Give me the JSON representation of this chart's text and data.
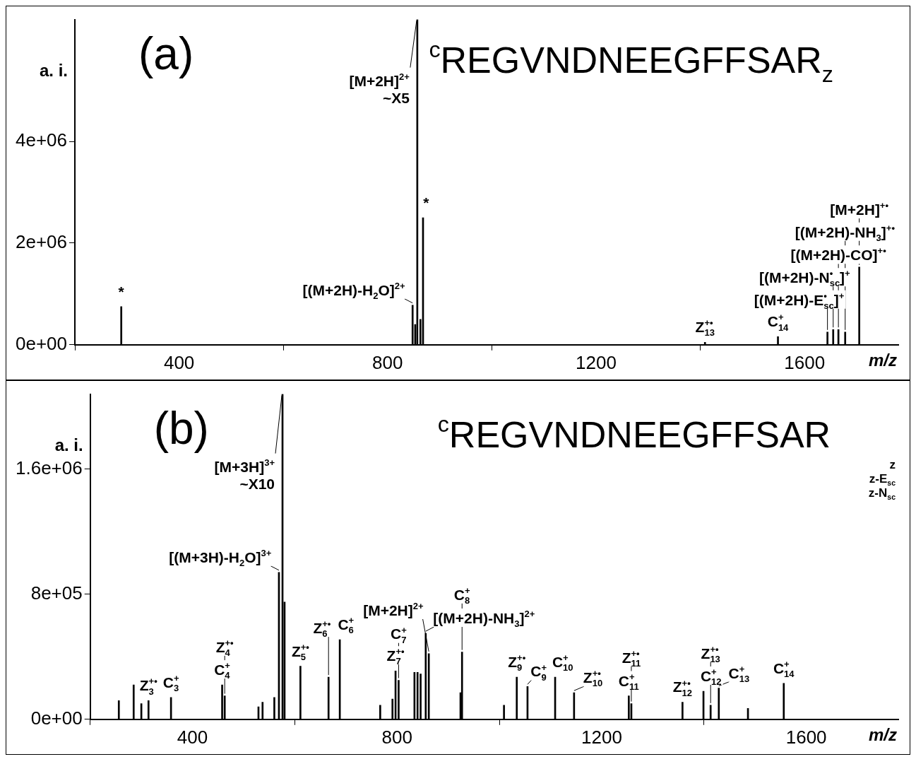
{
  "chart_data": [
    {
      "type": "bar",
      "ylabel": "a. i.",
      "xlabel": "m/z",
      "color": "#000000",
      "annotations": [
        "(a)",
        "$^{c}$REGVNDNEEGFFSAR$_{z}$",
        {
          "text": "*",
          "x": 289,
          "y": 750000
        },
        {
          "text": "[(M+2H)-H$_{2}$O]$^{2+}$",
          "x": 848,
          "y": 780000
        },
        {
          "text": "[M+2H]$^{2+}$\n~X5",
          "x": 857,
          "y": 6400000
        },
        {
          "text": "*",
          "x": 868,
          "y": 2500000
        },
        {
          "text": "Z$_{13}$$^{+•}$",
          "x": 1409,
          "y": 50000
        },
        {
          "text": "C$_{14}$$^{+}$",
          "x": 1549,
          "y": 160000
        },
        {
          "text": "[(M+2H)-E$_{sc}$$^{•}$]$^{+}$",
          "x": 1644,
          "y": 250000
        },
        {
          "text": "[(M+2H)-N$_{sc}$$^{•}$]$^{+}$",
          "x": 1655,
          "y": 300000
        },
        {
          "text": "[(M+2H)-CO]$^{+•}$",
          "x": 1665,
          "y": 300000
        },
        {
          "text": "[(M+2H)-NH$_{3}$]$^{+•}$",
          "x": 1678,
          "y": 250000
        },
        {
          "text": "[M+2H]$^{+•}$",
          "x": 1705,
          "y": 1530000
        }
      ],
      "x": [
        289,
        848,
        853,
        857,
        863,
        868,
        1409,
        1549,
        1644,
        1655,
        1665,
        1678,
        1705
      ],
      "values": [
        750000,
        780000,
        400000,
        6400000,
        500000,
        2500000,
        50000,
        160000,
        250000,
        300000,
        300000,
        250000,
        1530000
      ],
      "xlim": [
        200,
        1780
      ],
      "ylim": [
        0,
        6400000
      ],
      "xticks": [
        400,
        800,
        1200,
        1600
      ],
      "yticks": [
        {
          "value": 0,
          "label": "0e+00"
        },
        {
          "value": 2000000,
          "label": "2e+06"
        },
        {
          "value": 4000000,
          "label": "4e+06"
        }
      ]
    },
    {
      "type": "bar",
      "ylabel": "a. i.",
      "xlabel": "m/z",
      "color": "#000000",
      "annotations": [
        "(b)",
        "$^{c}$REGVNDNEEGFFSAR",
        "z",
        "z-E$_{sc}$",
        "z-N$_{sc}$",
        {
          "text": "[M+3H]$^{3+}$\n~X10",
          "x": 576,
          "y": 2080000
        },
        {
          "text": "[(M+3H)-H$_{2}$O]$^{3+}$",
          "x": 569,
          "y": 940000
        },
        {
          "text": "Z$_{3}$$^{+•}$",
          "x": 314,
          "y": 120000
        },
        {
          "text": "C$_{3}$$^{+}$",
          "x": 358,
          "y": 140000
        },
        {
          "text": "C$_{4}$$^{+}$",
          "x": 458,
          "y": 220000
        },
        {
          "text": "Z$_{4}$$^{+•}$",
          "x": 463,
          "y": 150000
        },
        {
          "text": "Z$_{5}$$^{+•}$",
          "x": 611,
          "y": 340000
        },
        {
          "text": "Z$_{6}$$^{+•}$",
          "x": 666,
          "y": 270000
        },
        {
          "text": "C$_{6}$$^{+}$",
          "x": 688,
          "y": 510000
        },
        {
          "text": "Z$_{7}$$^{+•}$",
          "x": 797,
          "y": 310000
        },
        {
          "text": "C$_{7}$$^{+}$",
          "x": 803,
          "y": 250000
        },
        {
          "text": "[(M+2H)-NH$_{3}$]$^{2+}$",
          "x": 856,
          "y": 550000
        },
        {
          "text": "[M+2H]$^{2+}$",
          "x": 862,
          "y": 420000
        },
        {
          "text": "C$_{8}$$^{+}$",
          "x": 927,
          "y": 430000
        },
        {
          "text": "Z$_{9}$$^{+•}$",
          "x": 1034,
          "y": 270000
        },
        {
          "text": "C$_{9}$$^{+}$",
          "x": 1055,
          "y": 210000
        },
        {
          "text": "C$_{10}$$^{+}$",
          "x": 1109,
          "y": 270000
        },
        {
          "text": "Z$_{10}$$^{+•}$",
          "x": 1146,
          "y": 170000
        },
        {
          "text": "C$_{11}$$^{+}$",
          "x": 1253,
          "y": 150000
        },
        {
          "text": "Z$_{11}$$^{+•}$",
          "x": 1258,
          "y": 100000
        },
        {
          "text": "Z$_{12}$$^{+•}$",
          "x": 1358,
          "y": 110000
        },
        {
          "text": "C$_{12}$$^{+}$",
          "x": 1399,
          "y": 180000
        },
        {
          "text": "Z$_{13}$$^{+•}$",
          "x": 1413,
          "y": 90000
        },
        {
          "text": "C$_{13}$$^{+}$",
          "x": 1429,
          "y": 200000
        },
        {
          "text": "C$_{14}$$^{+}$",
          "x": 1556,
          "y": 230000
        }
      ],
      "x": [
        256,
        285,
        300,
        314,
        358,
        458,
        463,
        529,
        537,
        560,
        569,
        576,
        580,
        611,
        666,
        688,
        767,
        791,
        797,
        803,
        834,
        840,
        846,
        856,
        862,
        924,
        927,
        1009,
        1034,
        1055,
        1109,
        1146,
        1253,
        1258,
        1358,
        1399,
        1413,
        1429,
        1486,
        1556
      ],
      "values": [
        120000,
        220000,
        100000,
        120000,
        140000,
        220000,
        150000,
        80000,
        110000,
        140000,
        940000,
        2080000,
        750000,
        340000,
        270000,
        510000,
        90000,
        130000,
        310000,
        250000,
        300000,
        300000,
        290000,
        550000,
        420000,
        170000,
        430000,
        90000,
        270000,
        210000,
        270000,
        170000,
        150000,
        100000,
        110000,
        180000,
        90000,
        200000,
        70000,
        230000
      ],
      "xlim": [
        200,
        1780
      ],
      "ylim": [
        0,
        2080000
      ],
      "xticks": [
        400,
        800,
        1200,
        1600
      ],
      "yticks": [
        {
          "value": 0,
          "label": "0e+00"
        },
        {
          "value": 800000,
          "label": "8e+05"
        },
        {
          "value": 1600000,
          "label": "1.6e+06"
        }
      ]
    }
  ]
}
